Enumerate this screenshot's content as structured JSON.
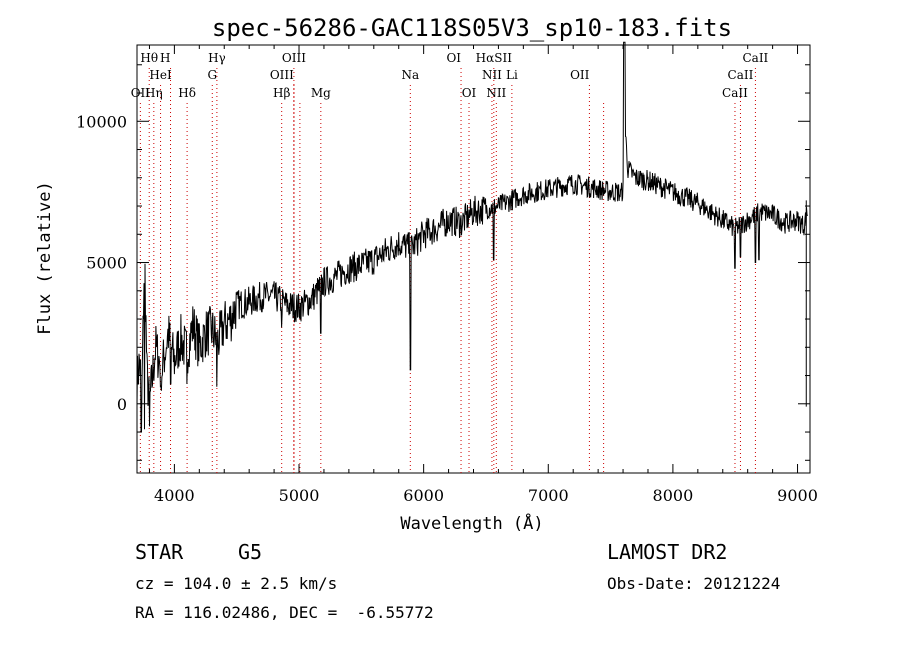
{
  "chart_data": {
    "type": "line",
    "title": "spec-56286-GAC118S05V3_sp10-183.fits",
    "xlabel": "Wavelength (Å)",
    "ylabel": "Flux (relative)",
    "xlim": [
      3700,
      9100
    ],
    "ylim": [
      -2450,
      12700
    ],
    "x_ticks": [
      4000,
      5000,
      6000,
      7000,
      8000,
      9000
    ],
    "y_ticks": [
      0,
      5000,
      10000
    ],
    "line_color": "#000000",
    "marker_color": "#cc0000",
    "spectrum_profile": {
      "x": [
        3700,
        3720,
        3740,
        3760,
        3780,
        3800,
        3850,
        3900,
        3950,
        4000,
        4050,
        4100,
        4150,
        4200,
        4250,
        4300,
        4350,
        4400,
        4450,
        4500,
        4600,
        4700,
        4800,
        4900,
        5000,
        5100,
        5200,
        5300,
        5400,
        5500,
        5600,
        5700,
        5800,
        5900,
        6000,
        6100,
        6200,
        6300,
        6400,
        6500,
        6600,
        6700,
        6800,
        6900,
        7000,
        7100,
        7200,
        7300,
        7400,
        7500,
        7560,
        7580,
        7600,
        7610,
        7620,
        7640,
        7700,
        7800,
        7900,
        8000,
        8100,
        8200,
        8300,
        8400,
        8500,
        8600,
        8700,
        8800,
        8900,
        9000,
        9050,
        9080
      ],
      "y": [
        800,
        1500,
        500,
        5500,
        1000,
        0,
        2000,
        1200,
        2500,
        1500,
        2300,
        1800,
        2800,
        2000,
        2500,
        2600,
        2200,
        2800,
        3000,
        3500,
        3600,
        3800,
        3800,
        3500,
        3400,
        3700,
        4300,
        4500,
        4800,
        4900,
        5100,
        5400,
        5700,
        5500,
        6000,
        6200,
        6500,
        6400,
        6800,
        6900,
        7000,
        7200,
        7400,
        7500,
        7600,
        7700,
        7800,
        7700,
        7600,
        7500,
        7500,
        7400,
        7600,
        12500,
        9500,
        8300,
        8000,
        7900,
        7700,
        7500,
        7300,
        7100,
        6800,
        6500,
        6200,
        6500,
        6800,
        6700,
        6400,
        6500,
        6300,
        6800
      ]
    },
    "absorption_dips": [
      {
        "x": 3735,
        "y": -1000
      },
      {
        "x": 3760,
        "y": -900
      },
      {
        "x": 3800,
        "y": -800
      },
      {
        "x": 3890,
        "y": 600
      },
      {
        "x": 3970,
        "y": 700
      },
      {
        "x": 4100,
        "y": 700
      },
      {
        "x": 4340,
        "y": 600
      },
      {
        "x": 4860,
        "y": 2700
      },
      {
        "x": 5175,
        "y": 2500
      },
      {
        "x": 5893,
        "y": 1200
      },
      {
        "x": 6563,
        "y": 5100
      },
      {
        "x": 8498,
        "y": 4800
      },
      {
        "x": 8542,
        "y": 5200
      },
      {
        "x": 8662,
        "y": 5000
      },
      {
        "x": 8690,
        "y": 5100
      }
    ],
    "lines": [
      {
        "label": "Hθ",
        "x": 3798,
        "row": 0,
        "style": "dotted"
      },
      {
        "label": "H",
        "x": 3969,
        "row": 0,
        "style": "dotted",
        "anchor": "end"
      },
      {
        "label": "Hγ",
        "x": 4341,
        "row": 0,
        "style": "dotted"
      },
      {
        "label": "OIII",
        "x": 4959,
        "row": 0,
        "style": "dotted"
      },
      {
        "label": "OI",
        "x": 6300,
        "row": 0,
        "style": "dotted",
        "anchor": "end"
      },
      {
        "label": "HαSII",
        "x": 6563,
        "row": 0,
        "style": "dotted"
      },
      {
        "label": "CaII",
        "x": 8662,
        "row": 0,
        "style": "dotted"
      },
      {
        "label": "HeI",
        "x": 3889,
        "row": 1,
        "style": "dotted"
      },
      {
        "label": "G",
        "x": 4304,
        "row": 1,
        "style": "dotted"
      },
      {
        "label": "OIII",
        "x": 4959,
        "row": 1,
        "style": "dotted",
        "anchor": "end"
      },
      {
        "label": "Na",
        "x": 5893,
        "row": 1,
        "style": "dotted"
      },
      {
        "label": "NII",
        "x": 6548,
        "row": 1,
        "style": "dotted"
      },
      {
        "label": "Li",
        "x": 6708,
        "row": 1,
        "style": "dotted"
      },
      {
        "label": "OII",
        "x": 7330,
        "row": 1,
        "style": "dotted",
        "anchor": "end"
      },
      {
        "label": "CaII",
        "x": 8542,
        "row": 1,
        "style": "dotted"
      },
      {
        "label": "OII",
        "x": 3727,
        "row": 2,
        "style": "dotted"
      },
      {
        "label": "Hη",
        "x": 3835,
        "row": 2,
        "style": "dotted"
      },
      {
        "label": "Hδ",
        "x": 4102,
        "row": 2,
        "style": "dotted"
      },
      {
        "label": "Hβ",
        "x": 4861,
        "row": 2,
        "style": "dotted"
      },
      {
        "label": "OIII",
        "x": 5007,
        "row": 2,
        "style": "dotted",
        "hidden": true
      },
      {
        "label": "Mg",
        "x": 5175,
        "row": 2,
        "style": "dotted"
      },
      {
        "label": "OI",
        "x": 6364,
        "row": 2,
        "style": "dotted"
      },
      {
        "label": "NII",
        "x": 6583,
        "row": 2,
        "style": "dotted"
      },
      {
        "label": "CaII",
        "x": 8498,
        "row": 2,
        "style": "dotted"
      },
      {
        "label": "",
        "x": 7444,
        "row": 2,
        "style": "dotted"
      }
    ]
  },
  "info": {
    "object_class": "STAR",
    "subclass": "G5",
    "survey": "LAMOST DR2",
    "redshift": "cz = 104.0 ± 2.5 km/s",
    "obs_date": "Obs-Date: 20121224",
    "coordinates": "RA = 116.02486, DEC =  -6.55772"
  }
}
